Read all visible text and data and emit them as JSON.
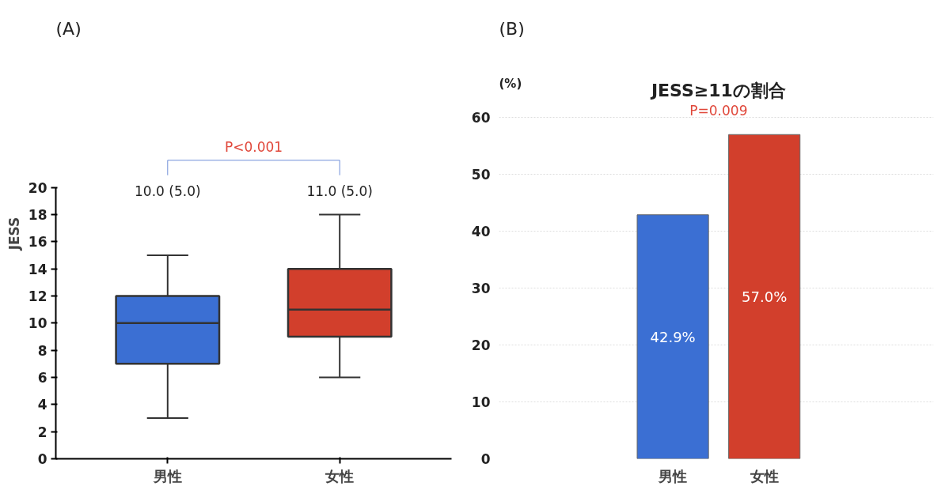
{
  "chart_data": [
    {
      "type": "box",
      "ylabel": "JESS",
      "categories": [
        "男性",
        "女性"
      ],
      "colors": [
        "#3b6fd3",
        "#d23f2c"
      ],
      "boxes": [
        {
          "low": 3,
          "q1": 7,
          "median": 10,
          "q3": 12,
          "high": 15
        },
        {
          "low": 6,
          "q1": 9,
          "median": 11,
          "q3": 14,
          "high": 18
        }
      ],
      "ylim": [
        0,
        20
      ],
      "yticks": [
        0,
        2,
        4,
        6,
        8,
        10,
        12,
        14,
        16,
        18,
        20
      ],
      "grid": false,
      "annotations": [
        "(A)",
        "P<0.001",
        "10.0 (5.0)",
        "11.0 (5.0)"
      ]
    },
    {
      "type": "bar",
      "title": "JESS≥11の割合",
      "ylabel": "(%)",
      "categories": [
        "男性",
        "女性"
      ],
      "values": [
        42.9,
        57.0
      ],
      "colors": [
        "#3b6fd3",
        "#d23f2c"
      ],
      "value_labels": [
        "42.9%",
        "57.0%"
      ],
      "ylim": [
        0,
        60
      ],
      "yticks": [
        0,
        10,
        20,
        30,
        40,
        50,
        60
      ],
      "grid": "y",
      "annotations": [
        "(B)",
        "P=0.009"
      ]
    }
  ]
}
